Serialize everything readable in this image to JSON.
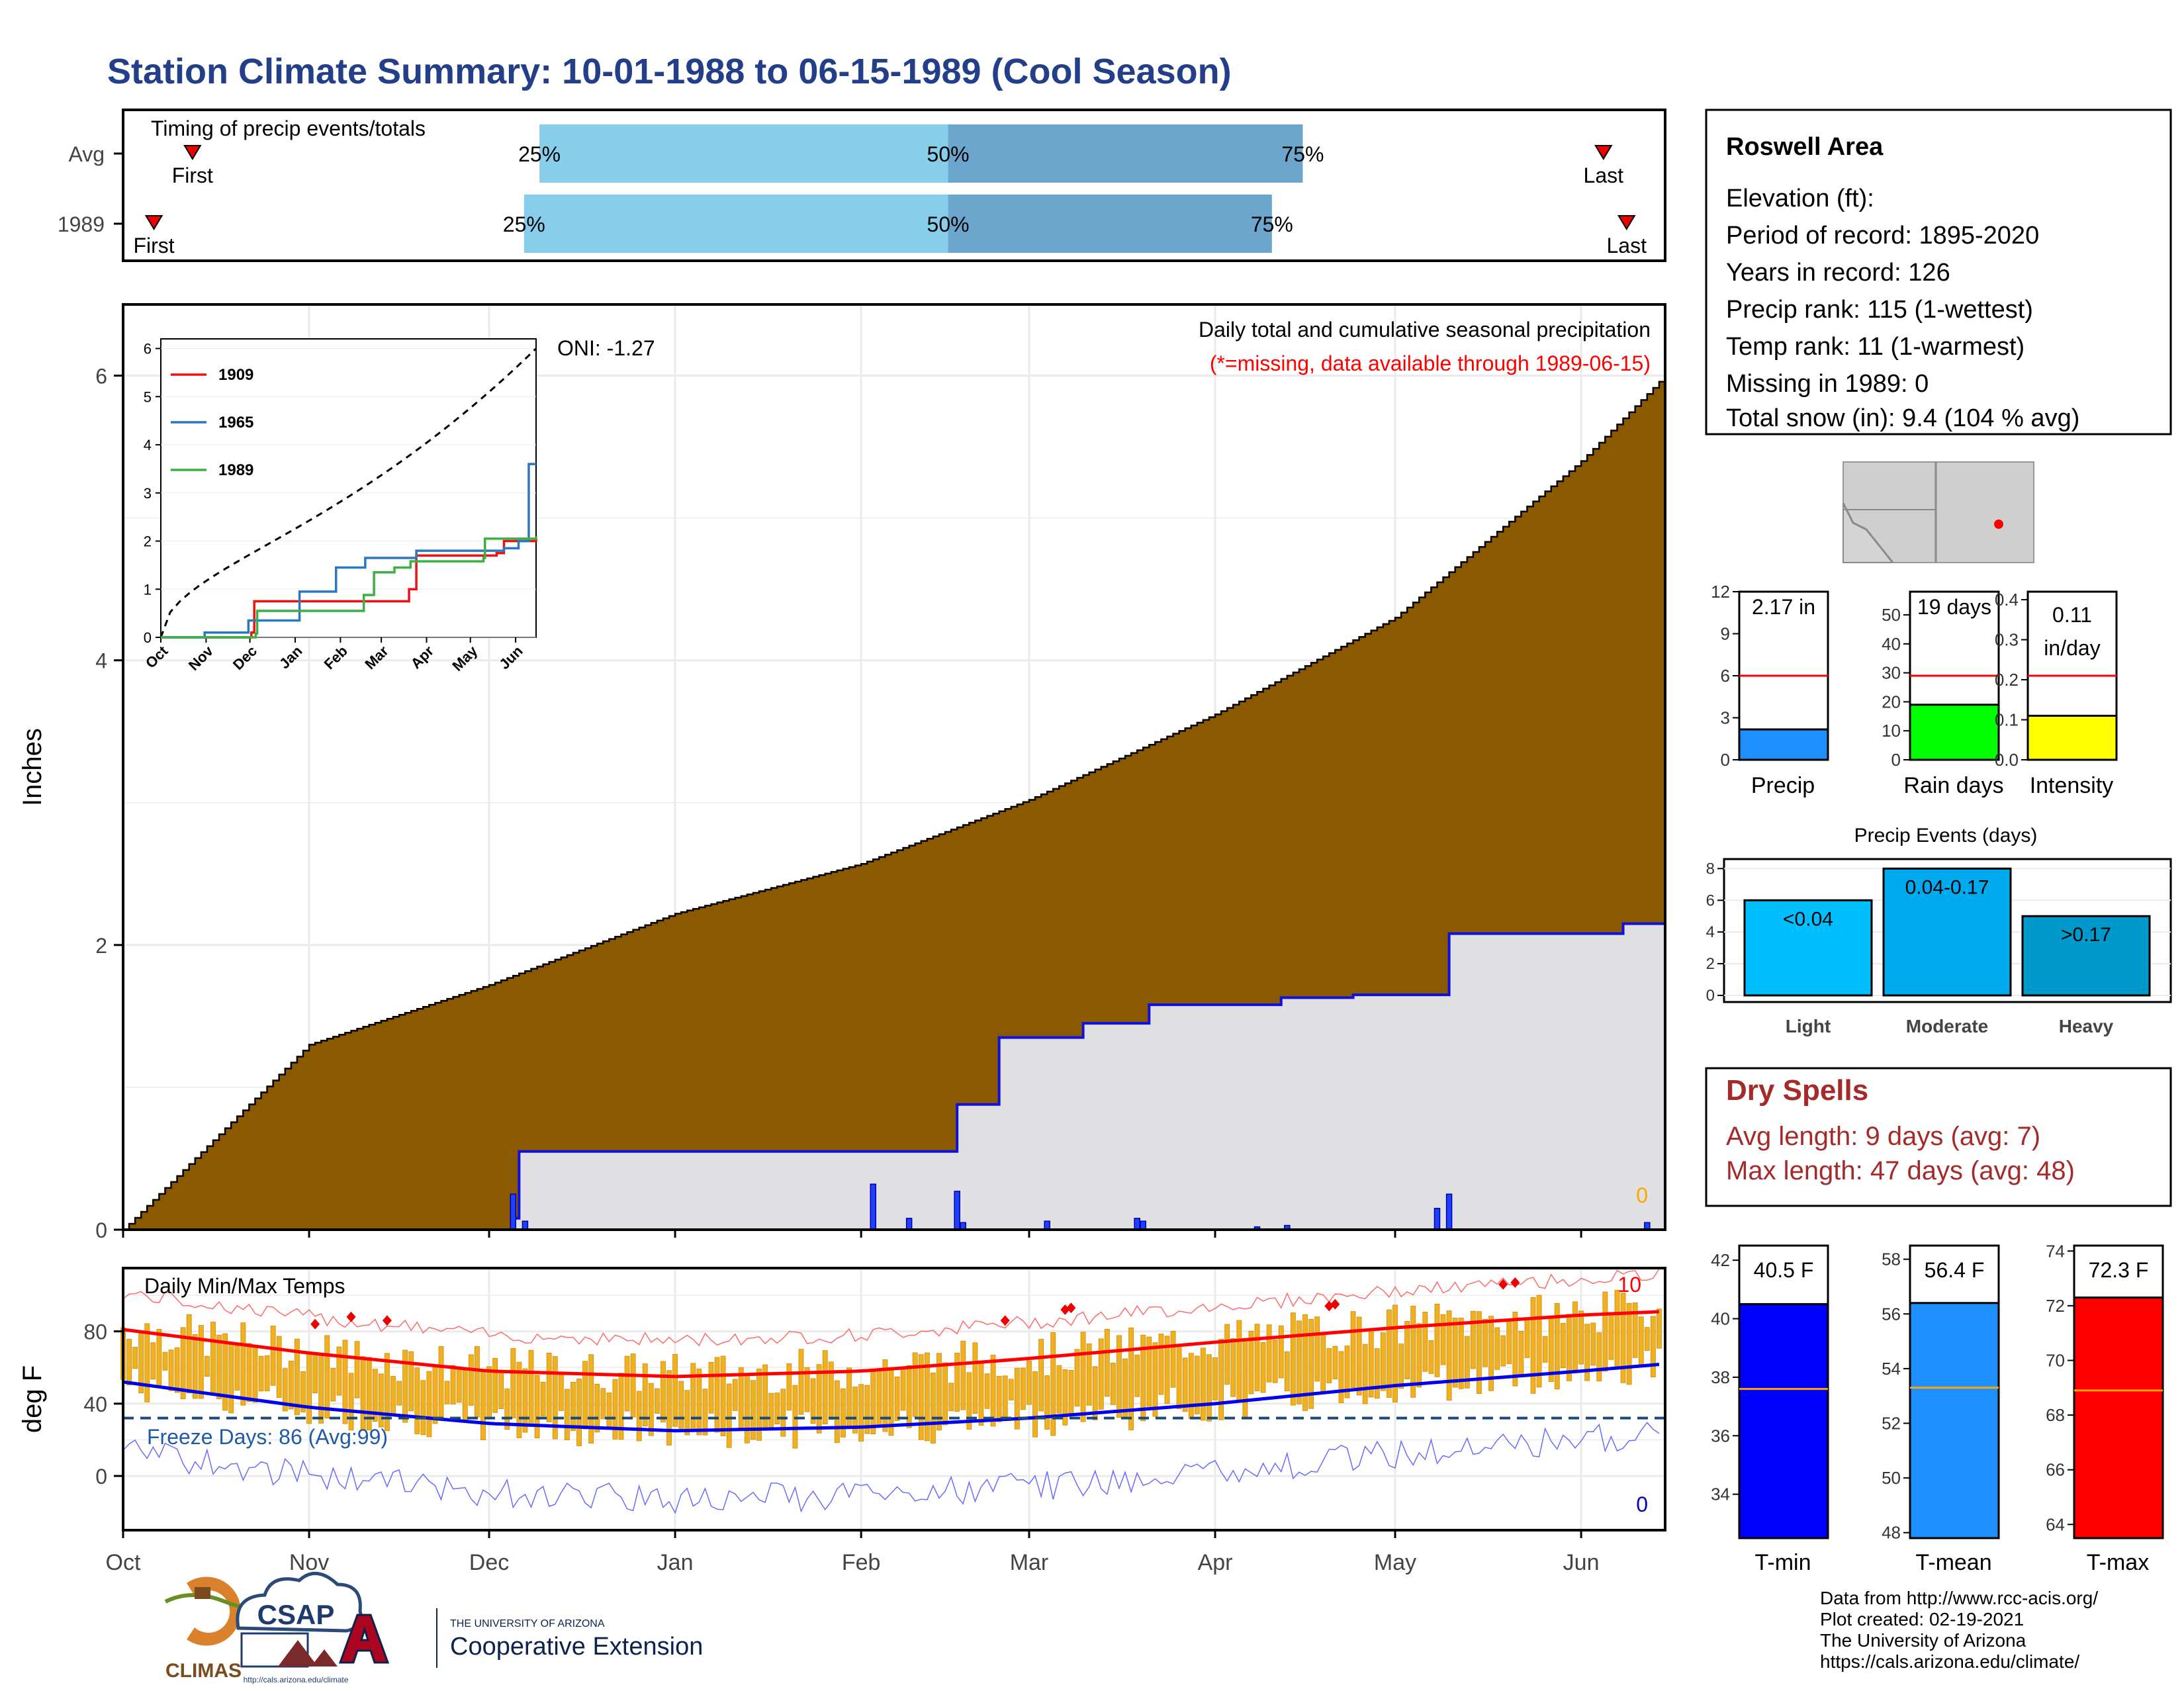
{
  "page_title": "Station Climate Summary: 10-01-1988 to 06-15-1989 (Cool Season)",
  "timing": {
    "title": "Timing of precip events/totals",
    "rows": [
      {
        "label": "Avg",
        "first": 0.045,
        "last": 0.96,
        "p25": 0.27,
        "p50": 0.535,
        "p75": 0.765,
        "first_label": "First",
        "last_label": "Last",
        "p25_label": "25%",
        "p50_label": "50%",
        "p75_label": "75%"
      },
      {
        "label": "1989",
        "first": 0.02,
        "last": 0.975,
        "p25": 0.26,
        "p50": 0.535,
        "p75": 0.745,
        "first_label": "First",
        "last_label": "Last",
        "p25_label": "25%",
        "p50_label": "50%",
        "p75_label": "75%"
      }
    ]
  },
  "station": {
    "name": "Roswell Area",
    "elevation": "Elevation (ft):",
    "period": "Period of record: 1895-2020",
    "years": "Years in record: 126",
    "precip_rank": "Precip rank: 115 (1-wettest)",
    "temp_rank": "Temp rank: 11 (1-warmest)",
    "missing": "Missing in 1989: 0",
    "snow": "Total snow (in): 9.4 (104 % avg)"
  },
  "precip_panel": {
    "ylabel": "Inches",
    "oni": "ONI: -1.27",
    "title": "Daily total and cumulative seasonal precipitation",
    "subtitle": "(*=missing, data available through 1989-06-15)",
    "zero_label": "0",
    "yticks": [
      "0",
      "2",
      "4",
      "6"
    ]
  },
  "months": [
    "Oct",
    "Nov",
    "Dec",
    "Jan",
    "Feb",
    "Mar",
    "Apr",
    "May",
    "Jun"
  ],
  "inset": {
    "yticks": [
      "0",
      "1",
      "2",
      "3",
      "4",
      "5",
      "6"
    ],
    "xticks": [
      "Oct",
      "Nov",
      "Dec",
      "Jan",
      "Feb",
      "Mar",
      "Apr",
      "May",
      "Jun"
    ],
    "legend": [
      {
        "name": "1909",
        "color": "#ee1111"
      },
      {
        "name": "1965",
        "color": "#2b77c2"
      },
      {
        "name": "1989",
        "color": "#3cb043"
      }
    ]
  },
  "temp_panel": {
    "ylabel": "deg F",
    "title": "Daily Min/Max Temps",
    "freeze": "Freeze Days: 86 (Avg:99)",
    "max_count": "10",
    "min_count": "0",
    "yticks": [
      "0",
      "40",
      "80"
    ]
  },
  "gauges": {
    "precip": {
      "label": "Precip",
      "value_text": "2.17 in",
      "value": 2.17,
      "avg": 6,
      "yticks": [
        "0",
        "3",
        "6",
        "9",
        "12"
      ],
      "max": 12,
      "color": "#1e90ff"
    },
    "raindays": {
      "label": "Rain days",
      "value_text": "19 days",
      "value": 19,
      "avg": 29,
      "yticks": [
        "0",
        "10",
        "20",
        "30",
        "40",
        "50"
      ],
      "max": 58,
      "color": "#00ff00"
    },
    "intensity": {
      "label": "Intensity",
      "value_text_1": "0.11",
      "value_text_2": "in/day",
      "value": 0.11,
      "avg": 0.21,
      "yticks": [
        "0.0",
        "0.1",
        "0.2",
        "0.3",
        "0.4"
      ],
      "max": 0.42,
      "color": "#ffff00"
    }
  },
  "events": {
    "title": "Precip Events (days)",
    "yticks": [
      "0",
      "2",
      "4",
      "6",
      "8"
    ],
    "bars": [
      {
        "name": "Light",
        "label": "<0.04",
        "value": 6,
        "color": "#00bfff"
      },
      {
        "name": "Moderate",
        "label": "0.04-0.17",
        "value": 8,
        "color": "#00aaee"
      },
      {
        "name": "Heavy",
        "label": ">0.17",
        "value": 5,
        "color": "#0099cc"
      }
    ]
  },
  "dry": {
    "title": "Dry Spells",
    "avg": "Avg length: 9 days (avg: 7)",
    "max": "Max length: 47 days (avg: 48)"
  },
  "temp_gauges": {
    "tmin": {
      "label": "T-min",
      "value_text": "40.5 F",
      "value": 40.5,
      "avg": 37.6,
      "min": 32.5,
      "max": 42.5,
      "yticks": [
        "34",
        "36",
        "38",
        "40",
        "42"
      ],
      "color": "#0000ff"
    },
    "tmean": {
      "label": "T-mean",
      "value_text": "56.4 F",
      "value": 56.4,
      "avg": 53.3,
      "min": 47.8,
      "max": 58.5,
      "yticks": [
        "48",
        "50",
        "52",
        "54",
        "56",
        "58"
      ],
      "color": "#1e90ff"
    },
    "tmax": {
      "label": "T-max",
      "value_text": "72.3 F",
      "value": 72.3,
      "avg": 68.9,
      "min": 63.5,
      "max": 74.2,
      "yticks": [
        "64",
        "66",
        "68",
        "70",
        "72",
        "74"
      ],
      "color": "#ff0000"
    }
  },
  "footer": {
    "line1": "Data from http://www.rcc-acis.org/",
    "line2": "Plot created: 02-19-2021",
    "line3": "The University of Arizona",
    "line4": "https://cals.arizona.edu/climate/"
  },
  "logos": {
    "climas": "CLIMAS",
    "csap": "CSAP",
    "csap_url": "http://cals.arizona.edu/climate",
    "ua_small": "THE UNIVERSITY OF ARIZONA",
    "ua_big": "Cooperative Extension"
  },
  "chart_data": [
    {
      "type": "area",
      "title": "Daily total and cumulative seasonal precipitation",
      "ylabel": "Inches",
      "ylim": [
        0,
        6.5
      ],
      "series": [
        {
          "name": "Avg",
          "x": [
            "Oct 1",
            "Nov 1",
            "Dec 1",
            "Jan 1",
            "Feb 1",
            "Mar 1",
            "Apr 1",
            "May 1",
            "Jun 1",
            "Jun 15"
          ],
          "values": [
            0,
            1.3,
            1.72,
            2.22,
            2.57,
            3.02,
            3.62,
            4.3,
            5.4,
            6.0
          ]
        },
        {
          "name": "1989",
          "x": [
            "Oct 1",
            "Dec 5",
            "Dec 6",
            "Feb 1",
            "Feb 17",
            "Feb 24",
            "Mar 10",
            "Mar 21",
            "Apr 12",
            "Apr 24",
            "May 8",
            "May 10",
            "Jun 8",
            "Jun 15"
          ],
          "values": [
            0,
            0.08,
            0.55,
            0.55,
            0.88,
            1.35,
            1.45,
            1.58,
            1.63,
            1.65,
            1.65,
            2.08,
            2.15,
            2.15
          ]
        }
      ],
      "daily_bars": [
        {
          "x": "Dec 5",
          "value": 0.25
        },
        {
          "x": "Dec 7",
          "value": 0.06
        },
        {
          "x": "Feb 3",
          "value": 0.32
        },
        {
          "x": "Feb 9",
          "value": 0.08
        },
        {
          "x": "Feb 17",
          "value": 0.27
        },
        {
          "x": "Feb 18",
          "value": 0.05
        },
        {
          "x": "Mar 4",
          "value": 0.06
        },
        {
          "x": "Mar 19",
          "value": 0.08
        },
        {
          "x": "Mar 20",
          "value": 0.06
        },
        {
          "x": "Apr 8",
          "value": 0.02
        },
        {
          "x": "Apr 13",
          "value": 0.03
        },
        {
          "x": "May 8",
          "value": 0.15
        },
        {
          "x": "May 10",
          "value": 0.25
        },
        {
          "x": "Jun 12",
          "value": 0.05
        }
      ]
    },
    {
      "type": "line",
      "title": "Daily Min/Max Temps",
      "ylabel": "deg F",
      "ylim": [
        -30,
        115
      ],
      "series": [
        {
          "name": "avg max",
          "x": [
            "Oct 1",
            "Nov 1",
            "Dec 1",
            "Jan 1",
            "Feb 1",
            "Mar 1",
            "Apr 1",
            "May 1",
            "Jun 1",
            "Jun 15"
          ],
          "values": [
            81,
            68,
            58,
            55,
            58,
            65,
            74,
            82,
            89,
            91
          ]
        },
        {
          "name": "avg min",
          "x": [
            "Oct 1",
            "Nov 1",
            "Dec 1",
            "Jan 1",
            "Feb 1",
            "Mar 1",
            "Apr 1",
            "May 1",
            "Jun 1",
            "Jun 15"
          ],
          "values": [
            52,
            38,
            29,
            25,
            27,
            32,
            40,
            50,
            58,
            62
          ]
        }
      ],
      "freeze_line": 32
    }
  ]
}
